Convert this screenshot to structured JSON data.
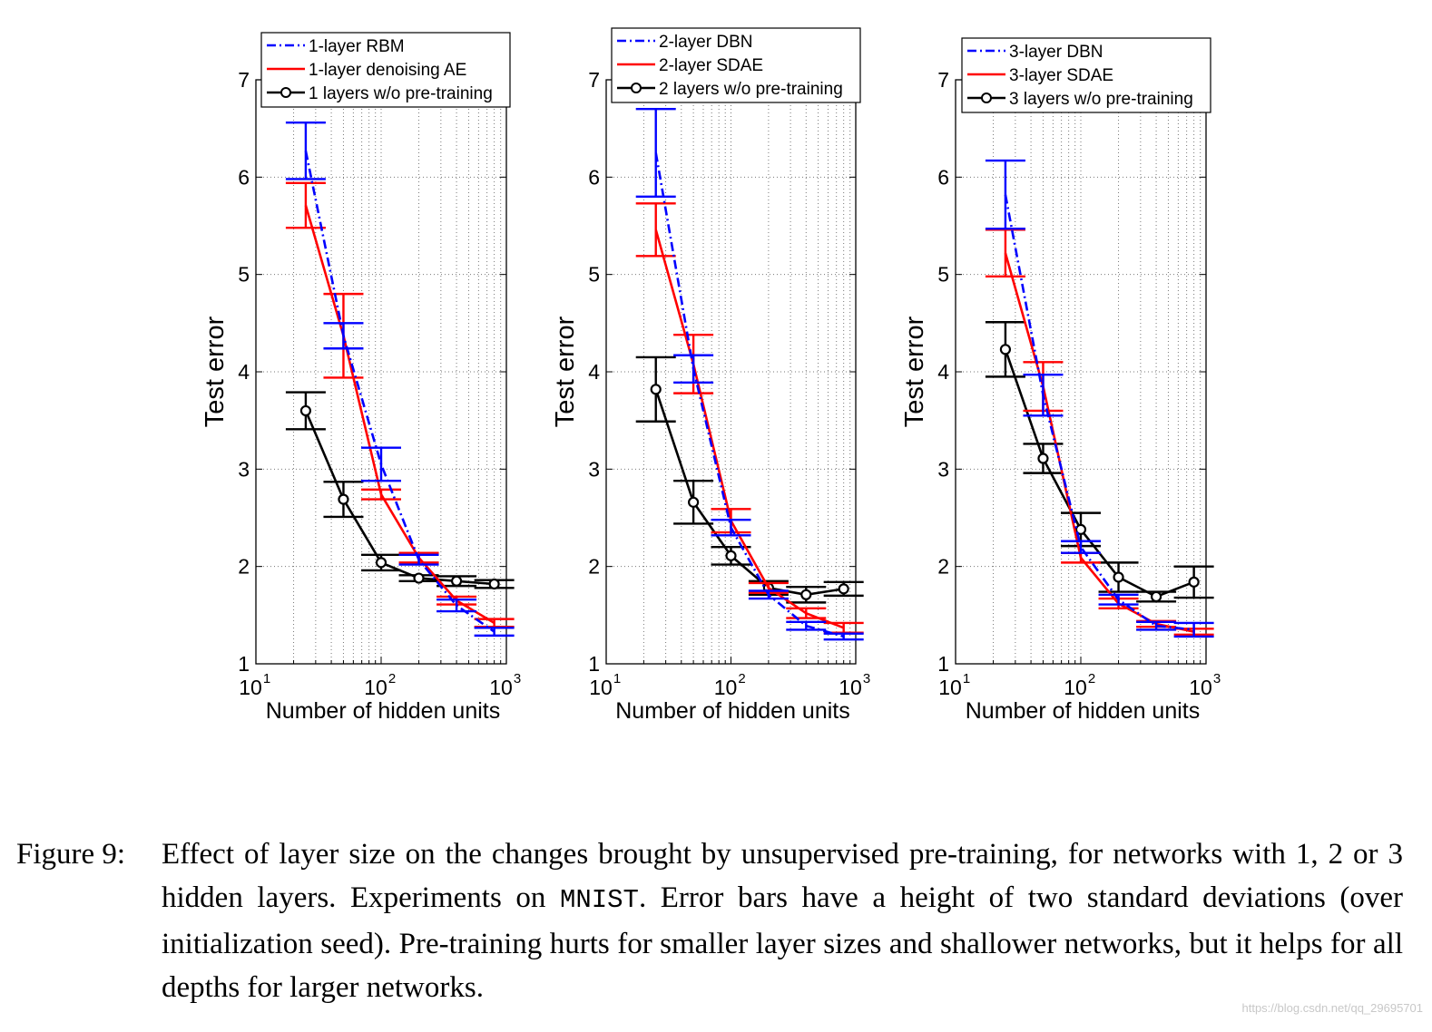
{
  "chart_data": [
    {
      "type": "line",
      "xscale": "log",
      "xlabel": "Number of hidden units",
      "ylabel": "Test error",
      "xlim": [
        10,
        1000
      ],
      "ylim": [
        1,
        7
      ],
      "yticks": [
        "1",
        "2",
        "3",
        "4",
        "5",
        "6",
        "7"
      ],
      "x": [
        25,
        50,
        100,
        200,
        400,
        800
      ],
      "legend_position": "top",
      "series": [
        {
          "name": "1-layer RBM",
          "color": "#0000ff",
          "style": "dashdot",
          "marker": "none",
          "values": [
            6.27,
            4.37,
            3.05,
            2.07,
            1.6,
            1.33
          ],
          "errors": [
            0.29,
            0.13,
            0.17,
            0.05,
            0.06,
            0.04
          ]
        },
        {
          "name": "1-layer denoising AE",
          "color": "#ff0000",
          "style": "solid",
          "marker": "none",
          "values": [
            5.71,
            4.37,
            2.74,
            2.09,
            1.65,
            1.42
          ],
          "errors": [
            0.23,
            0.43,
            0.05,
            0.05,
            0.04,
            0.04
          ]
        },
        {
          "name": "1 layers w/o pre-training",
          "color": "#000000",
          "style": "solid",
          "marker": "circle",
          "values": [
            3.6,
            2.69,
            2.04,
            1.88,
            1.85,
            1.82
          ],
          "errors": [
            0.19,
            0.18,
            0.08,
            0.03,
            0.05,
            0.04
          ]
        }
      ]
    },
    {
      "type": "line",
      "xscale": "log",
      "xlabel": "Number of hidden units",
      "ylabel": "Test error",
      "xlim": [
        10,
        1000
      ],
      "ylim": [
        1,
        7
      ],
      "yticks": [
        "1",
        "2",
        "3",
        "4",
        "5",
        "6",
        "7"
      ],
      "x": [
        25,
        50,
        100,
        200,
        400,
        800
      ],
      "legend_position": "top",
      "series": [
        {
          "name": "2-layer DBN",
          "color": "#0000ff",
          "style": "dashdot",
          "marker": "none",
          "values": [
            6.25,
            4.03,
            2.4,
            1.71,
            1.39,
            1.28
          ],
          "errors": [
            0.45,
            0.14,
            0.08,
            0.04,
            0.04,
            0.03
          ]
        },
        {
          "name": "2-layer SDAE",
          "color": "#ff0000",
          "style": "solid",
          "marker": "none",
          "values": [
            5.46,
            4.08,
            2.47,
            1.78,
            1.52,
            1.37
          ],
          "errors": [
            0.27,
            0.3,
            0.12,
            0.05,
            0.05,
            0.05
          ]
        },
        {
          "name": "2 layers w/o pre-training",
          "color": "#000000",
          "style": "solid",
          "marker": "circle",
          "values": [
            3.82,
            2.66,
            2.11,
            1.78,
            1.71,
            1.77
          ],
          "errors": [
            0.33,
            0.22,
            0.09,
            0.07,
            0.08,
            0.07
          ]
        }
      ]
    },
    {
      "type": "line",
      "xscale": "log",
      "xlabel": "Number of hidden units",
      "ylabel": "Test error",
      "xlim": [
        10,
        1000
      ],
      "ylim": [
        1,
        7
      ],
      "yticks": [
        "1",
        "2",
        "3",
        "4",
        "5",
        "6",
        "7"
      ],
      "x": [
        25,
        50,
        100,
        200,
        400,
        800
      ],
      "legend_position": "top",
      "series": [
        {
          "name": "3-layer DBN",
          "color": "#0000ff",
          "style": "dashdot",
          "marker": "none",
          "values": [
            5.82,
            3.76,
            2.2,
            1.66,
            1.39,
            1.35
          ],
          "errors": [
            0.35,
            0.21,
            0.06,
            0.05,
            0.04,
            0.07
          ]
        },
        {
          "name": "3-layer SDAE",
          "color": "#ff0000",
          "style": "solid",
          "marker": "none",
          "values": [
            5.22,
            3.85,
            2.09,
            1.62,
            1.41,
            1.33
          ],
          "errors": [
            0.24,
            0.25,
            0.05,
            0.05,
            0.03,
            0.03
          ]
        },
        {
          "name": "3 layers w/o pre-training",
          "color": "#000000",
          "style": "solid",
          "marker": "circle",
          "values": [
            4.23,
            3.11,
            2.38,
            1.89,
            1.69,
            1.84
          ],
          "errors": [
            0.28,
            0.15,
            0.17,
            0.15,
            0.05,
            0.16
          ]
        }
      ]
    }
  ],
  "caption": {
    "label": "Figure 9:",
    "text_1": "Effect of layer size on the changes brought by unsupervised pre-training, for networks with 1, 2 or 3 hidden layers.  Experiments on ",
    "dataset": "MNIST",
    "text_2": ". Error bars have a height of two standard deviations (over initialization seed).  Pre-training hurts for smaller layer sizes and shallower networks, but it helps for all depths for larger networks."
  },
  "watermark": "https://blog.csdn.net/qq_29695701"
}
